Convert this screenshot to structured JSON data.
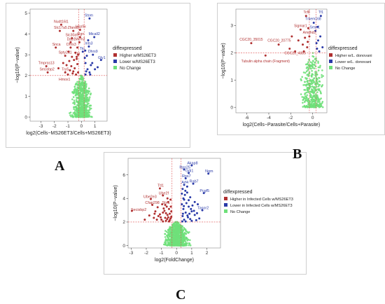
{
  "panel_letters": {
    "a": "A",
    "b": "B",
    "c": "C"
  },
  "colors": {
    "higher": "#b03030",
    "lower": "#2a3aa8",
    "nochange": "#6fe07a",
    "threshold": "#e05050"
  },
  "chart_data": [
    {
      "type": "scatter",
      "panel": "A",
      "xlabel": "log2(Cells−MS26ET3/Cells+MS26ET3)",
      "ylabel": "−log10(P−value)",
      "xlim": [
        -3.8,
        1.9
      ],
      "ylim": [
        -0.2,
        5.2
      ],
      "xticks": [
        -3,
        -2,
        -1,
        0,
        1
      ],
      "yticks": [
        0,
        1,
        2,
        3,
        4,
        5
      ],
      "thresholds": {
        "y": 2,
        "x": [
          -0.2,
          0.2
        ]
      },
      "grid": false,
      "legend": {
        "title": "diffexpressed",
        "position": "right",
        "entries": [
          "Higher w/MS26ET3",
          "Lower w/MS26ET3",
          "No Change"
        ]
      },
      "annotations": [
        {
          "text": "Nudt16l1",
          "x": -1.5,
          "y": 4.55,
          "group": "higher"
        },
        {
          "text": "Slc17a5",
          "x": -1.55,
          "y": 4.25,
          "group": "higher"
        },
        {
          "text": "Zfand5",
          "x": -0.6,
          "y": 4.25,
          "group": "higher"
        },
        {
          "text": "Usp9x",
          "x": -0.05,
          "y": 4.3,
          "group": "higher"
        },
        {
          "text": "Stom",
          "x": 0.55,
          "y": 4.85,
          "group": "lower"
        },
        {
          "text": "Sic30a9",
          "x": -0.7,
          "y": 3.9,
          "group": "higher"
        },
        {
          "text": "Rgn",
          "x": -0.05,
          "y": 3.95,
          "group": "higher"
        },
        {
          "text": "Micall2",
          "x": 0.95,
          "y": 3.95,
          "group": "lower"
        },
        {
          "text": "Mcm2",
          "x": -0.1,
          "y": 3.7,
          "group": "higher"
        },
        {
          "text": "Dpp1",
          "x": -0.75,
          "y": 3.7,
          "group": "higher"
        },
        {
          "text": "Snca",
          "x": -1.85,
          "y": 3.45,
          "group": "higher"
        },
        {
          "text": "Dhrs3",
          "x": -0.75,
          "y": 3.45,
          "group": "higher"
        },
        {
          "text": "Ints3",
          "x": 0.55,
          "y": 3.5,
          "group": "lower"
        },
        {
          "text": "Ttc",
          "x": 0.05,
          "y": 3.25,
          "group": "lower"
        },
        {
          "text": "Spty2d1",
          "x": -1.2,
          "y": 3.05,
          "group": "higher"
        },
        {
          "text": "Ttg",
          "x": -0.3,
          "y": 3.0,
          "group": "higher"
        },
        {
          "text": "Dhrs9",
          "x": 0.85,
          "y": 3.1,
          "group": "lower"
        },
        {
          "text": "Gly1",
          "x": 1.5,
          "y": 2.8,
          "group": "lower"
        },
        {
          "text": "Tmprss13",
          "x": -2.6,
          "y": 2.55,
          "group": "higher"
        },
        {
          "text": "Secisbp2",
          "x": -2.55,
          "y": 2.25,
          "group": "higher"
        },
        {
          "text": "Try5",
          "x": -1.2,
          "y": 2.25,
          "group": "higher"
        },
        {
          "text": "Hmox1",
          "x": -1.25,
          "y": 1.75,
          "group": "higher"
        }
      ],
      "points": {
        "higher": [
          [
            -1.5,
            4.45
          ],
          [
            -1.6,
            4.15
          ],
          [
            -0.6,
            4.15
          ],
          [
            -0.1,
            4.2
          ],
          [
            -0.7,
            3.8
          ],
          [
            -0.1,
            3.85
          ],
          [
            -0.15,
            3.6
          ],
          [
            -0.8,
            3.6
          ],
          [
            -1.9,
            3.35
          ],
          [
            -0.8,
            3.35
          ],
          [
            -1.2,
            2.95
          ],
          [
            -0.35,
            2.9
          ],
          [
            -2.6,
            2.45
          ],
          [
            -2.5,
            2.15
          ],
          [
            -1.2,
            2.15
          ],
          [
            -1.1,
            2.5
          ],
          [
            -0.9,
            2.7
          ],
          [
            -0.7,
            2.9
          ],
          [
            -0.5,
            2.35
          ],
          [
            -0.45,
            3.1
          ],
          [
            -0.3,
            2.55
          ],
          [
            -0.25,
            2.15
          ],
          [
            -0.6,
            2.2
          ],
          [
            -1.0,
            2.05
          ],
          [
            -0.55,
            2.75
          ],
          [
            -0.4,
            2.05
          ],
          [
            -0.75,
            2.45
          ],
          [
            -0.95,
            3.15
          ],
          [
            -0.3,
            3.35
          ],
          [
            -0.65,
            2.1
          ],
          [
            -0.35,
            2.8
          ],
          [
            -1.35,
            2.6
          ],
          [
            -0.85,
            2.25
          ],
          [
            -0.25,
            3.0
          ],
          [
            -1.7,
            2.35
          ]
        ],
        "lower": [
          [
            0.6,
            4.75
          ],
          [
            0.95,
            3.85
          ],
          [
            0.55,
            3.4
          ],
          [
            0.1,
            3.15
          ],
          [
            0.85,
            3.0
          ],
          [
            1.45,
            2.75
          ],
          [
            0.3,
            2.6
          ],
          [
            0.45,
            2.3
          ],
          [
            0.7,
            2.5
          ],
          [
            0.3,
            2.05
          ],
          [
            0.6,
            2.15
          ],
          [
            0.25,
            2.85
          ],
          [
            0.4,
            2.95
          ],
          [
            1.0,
            2.3
          ],
          [
            0.35,
            2.2
          ],
          [
            0.8,
            2.6
          ],
          [
            0.5,
            3.7
          ],
          [
            1.2,
            2.4
          ],
          [
            0.28,
            3.2
          ],
          [
            0.65,
            2.05
          ]
        ]
      }
    },
    {
      "type": "scatter",
      "panel": "B",
      "xlabel": "log2(Cells−Parasite/Cells+Parasite)",
      "ylabel": "−log10(P−value)",
      "xlim": [
        -7,
        1.3
      ],
      "ylim": [
        -0.2,
        3.6
      ],
      "xticks": [
        -6,
        -4,
        -2,
        0
      ],
      "yticks": [
        0,
        1,
        2,
        3
      ],
      "thresholds": {
        "y": 2,
        "x": [
          -0.3,
          0.3
        ]
      },
      "grid": false,
      "legend": {
        "title": "diffexpressed",
        "position": "right",
        "entries": [
          "Higher w/L. donovani",
          "Lower w/L. donovani",
          "No Change"
        ]
      },
      "annotations": [
        {
          "text": "Tcf8",
          "x": -0.55,
          "y": 3.45,
          "group": "higher"
        },
        {
          "text": "Tf1",
          "x": 0.75,
          "y": 3.45,
          "group": "lower"
        },
        {
          "text": "Tmem168",
          "x": 0.05,
          "y": 3.2,
          "group": "lower"
        },
        {
          "text": "Sigmar1",
          "x": -1.1,
          "y": 2.95,
          "group": "higher"
        },
        {
          "text": "Sesn1",
          "x": 0.2,
          "y": 2.9,
          "group": "lower"
        },
        {
          "text": "Amdhd2",
          "x": -0.3,
          "y": 2.7,
          "group": "higher"
        },
        {
          "text": "CGC20_35015",
          "x": -5.6,
          "y": 2.45,
          "group": "higher"
        },
        {
          "text": "CGC20_20775",
          "x": -3.05,
          "y": 2.4,
          "group": "higher"
        },
        {
          "text": "CGC20_4385",
          "x": -1.6,
          "y": 1.95,
          "group": "higher"
        },
        {
          "text": "Tubulin alpha chain (Fragment)",
          "x": -4.3,
          "y": 1.65,
          "group": "higher"
        }
      ],
      "points": {
        "higher": [
          [
            -0.6,
            3.35
          ],
          [
            -1.1,
            2.85
          ],
          [
            -0.3,
            2.6
          ],
          [
            -5.6,
            2.35
          ],
          [
            -3.1,
            2.3
          ],
          [
            -1.6,
            2.05
          ],
          [
            -4.3,
            1.9
          ],
          [
            -0.9,
            2.3
          ],
          [
            -0.7,
            2.55
          ],
          [
            -0.5,
            2.2
          ],
          [
            -1.3,
            2.45
          ],
          [
            -0.4,
            2.9
          ],
          [
            -0.8,
            2.05
          ],
          [
            -2.1,
            2.15
          ],
          [
            -0.45,
            2.4
          ],
          [
            -1.9,
            2.6
          ]
        ],
        "lower": [
          [
            0.75,
            3.35
          ],
          [
            0.1,
            3.1
          ],
          [
            0.25,
            2.8
          ],
          [
            0.5,
            2.45
          ],
          [
            0.4,
            2.15
          ],
          [
            0.7,
            2.6
          ],
          [
            0.9,
            2.2
          ],
          [
            0.35,
            2.35
          ],
          [
            0.6,
            2.05
          ],
          [
            0.45,
            2.95
          ]
        ]
      }
    },
    {
      "type": "scatter",
      "panel": "C",
      "xlabel": "log2(FoldChange)",
      "ylabel": "−log10(P−value)",
      "xlim": [
        -3.2,
        2.9
      ],
      "ylim": [
        -0.2,
        7.4
      ],
      "xticks": [
        -3,
        -2,
        -1,
        0,
        1,
        2
      ],
      "yticks": [
        0,
        2,
        4,
        6
      ],
      "thresholds": {
        "y": 2,
        "x": [
          -0.3,
          0.3
        ]
      },
      "grid": false,
      "legend": {
        "title": "diffexpressed",
        "position": "right",
        "entries": [
          "Higher in Infected Cells w/MS26ET3",
          "Lower in Infected Cells w/MS26ET3",
          "No Change"
        ]
      },
      "annotations": [
        {
          "text": "Akap8",
          "x": 1.05,
          "y": 6.9,
          "group": "lower"
        },
        {
          "text": "Rps25",
          "x": 0.55,
          "y": 6.55,
          "group": "lower"
        },
        {
          "text": "Gdi1",
          "x": 0.85,
          "y": 6.25,
          "group": "lower"
        },
        {
          "text": "Ngm",
          "x": 2.15,
          "y": 6.2,
          "group": "lower"
        },
        {
          "text": "Rps7",
          "x": 0.65,
          "y": 5.8,
          "group": "lower"
        },
        {
          "text": "Arf4",
          "x": 0.55,
          "y": 5.25,
          "group": "lower"
        },
        {
          "text": "Rab7",
          "x": 1.15,
          "y": 5.35,
          "group": "lower"
        },
        {
          "text": "Pcgf5",
          "x": 1.85,
          "y": 4.55,
          "group": "lower"
        },
        {
          "text": "Tasor2",
          "x": 1.75,
          "y": 3.1,
          "group": "lower"
        },
        {
          "text": "Ttl1",
          "x": -1.05,
          "y": 5.0,
          "group": "higher"
        },
        {
          "text": "Ube2e3",
          "x": -1.75,
          "y": 4.05,
          "group": "higher"
        },
        {
          "text": "Ube2f",
          "x": -0.85,
          "y": 4.35,
          "group": "higher"
        },
        {
          "text": "Cfap298",
          "x": -1.6,
          "y": 3.55,
          "group": "higher"
        },
        {
          "text": "Stn1",
          "x": -0.7,
          "y": 3.55,
          "group": "higher"
        },
        {
          "text": "Secisbp2",
          "x": -2.5,
          "y": 2.95,
          "group": "higher"
        }
      ],
      "points": {
        "higher": [
          [
            -1.1,
            4.85
          ],
          [
            -1.7,
            3.95
          ],
          [
            -0.9,
            4.25
          ],
          [
            -1.6,
            3.45
          ],
          [
            -0.75,
            3.45
          ],
          [
            -2.95,
            2.95
          ],
          [
            -0.5,
            3.1
          ],
          [
            -0.6,
            2.6
          ],
          [
            -0.9,
            2.8
          ],
          [
            -1.2,
            2.5
          ],
          [
            -0.4,
            2.3
          ],
          [
            -1.0,
            2.2
          ],
          [
            -1.4,
            2.9
          ],
          [
            -0.7,
            2.1
          ],
          [
            -0.55,
            3.7
          ],
          [
            -1.3,
            2.2
          ],
          [
            -0.45,
            2.7
          ],
          [
            -0.85,
            3.15
          ],
          [
            -1.8,
            2.55
          ],
          [
            -0.35,
            2.45
          ],
          [
            -0.65,
            3.3
          ],
          [
            -1.1,
            2.65
          ],
          [
            -0.5,
            2.05
          ],
          [
            -0.95,
            3.5
          ],
          [
            -0.4,
            3.9
          ],
          [
            -1.5,
            2.35
          ],
          [
            -0.75,
            2.35
          ],
          [
            -0.6,
            4.0
          ],
          [
            -2.1,
            2.2
          ],
          [
            -0.35,
            2.9
          ],
          [
            -0.8,
            2.95
          ],
          [
            -1.25,
            3.25
          ],
          [
            -0.45,
            2.15
          ],
          [
            -0.7,
            2.75
          ],
          [
            -1.05,
            2.4
          ],
          [
            -0.55,
            2.4
          ],
          [
            -0.9,
            2.05
          ],
          [
            -1.45,
            2.7
          ],
          [
            -0.38,
            3.3
          ],
          [
            -0.62,
            2.25
          ]
        ],
        "lower": [
          [
            1.0,
            6.8
          ],
          [
            0.5,
            6.45
          ],
          [
            0.8,
            6.15
          ],
          [
            2.1,
            6.1
          ],
          [
            0.6,
            5.7
          ],
          [
            0.5,
            5.15
          ],
          [
            1.1,
            5.25
          ],
          [
            1.8,
            4.45
          ],
          [
            1.7,
            3.0
          ],
          [
            0.4,
            4.8
          ],
          [
            0.7,
            4.5
          ],
          [
            0.9,
            4.1
          ],
          [
            0.5,
            3.9
          ],
          [
            1.2,
            3.7
          ],
          [
            0.35,
            3.5
          ],
          [
            0.8,
            3.3
          ],
          [
            1.4,
            3.5
          ],
          [
            0.45,
            3.1
          ],
          [
            0.6,
            2.8
          ],
          [
            1.0,
            2.9
          ],
          [
            0.4,
            2.5
          ],
          [
            0.75,
            2.4
          ],
          [
            1.2,
            2.6
          ],
          [
            0.5,
            2.2
          ],
          [
            0.9,
            2.25
          ],
          [
            1.5,
            2.3
          ],
          [
            0.38,
            2.05
          ],
          [
            0.65,
            3.6
          ],
          [
            1.05,
            3.4
          ],
          [
            0.55,
            4.3
          ],
          [
            0.85,
            2.7
          ],
          [
            1.3,
            2.15
          ],
          [
            0.45,
            4.0
          ],
          [
            0.7,
            5.0
          ],
          [
            0.95,
            3.1
          ],
          [
            0.42,
            2.7
          ],
          [
            0.6,
            2.05
          ],
          [
            1.15,
            2.95
          ],
          [
            0.35,
            4.4
          ],
          [
            0.8,
            3.85
          ],
          [
            0.48,
            3.35
          ],
          [
            1.0,
            2.1
          ],
          [
            0.58,
            4.65
          ],
          [
            0.72,
            2.55
          ],
          [
            1.35,
            2.75
          ]
        ]
      }
    }
  ]
}
